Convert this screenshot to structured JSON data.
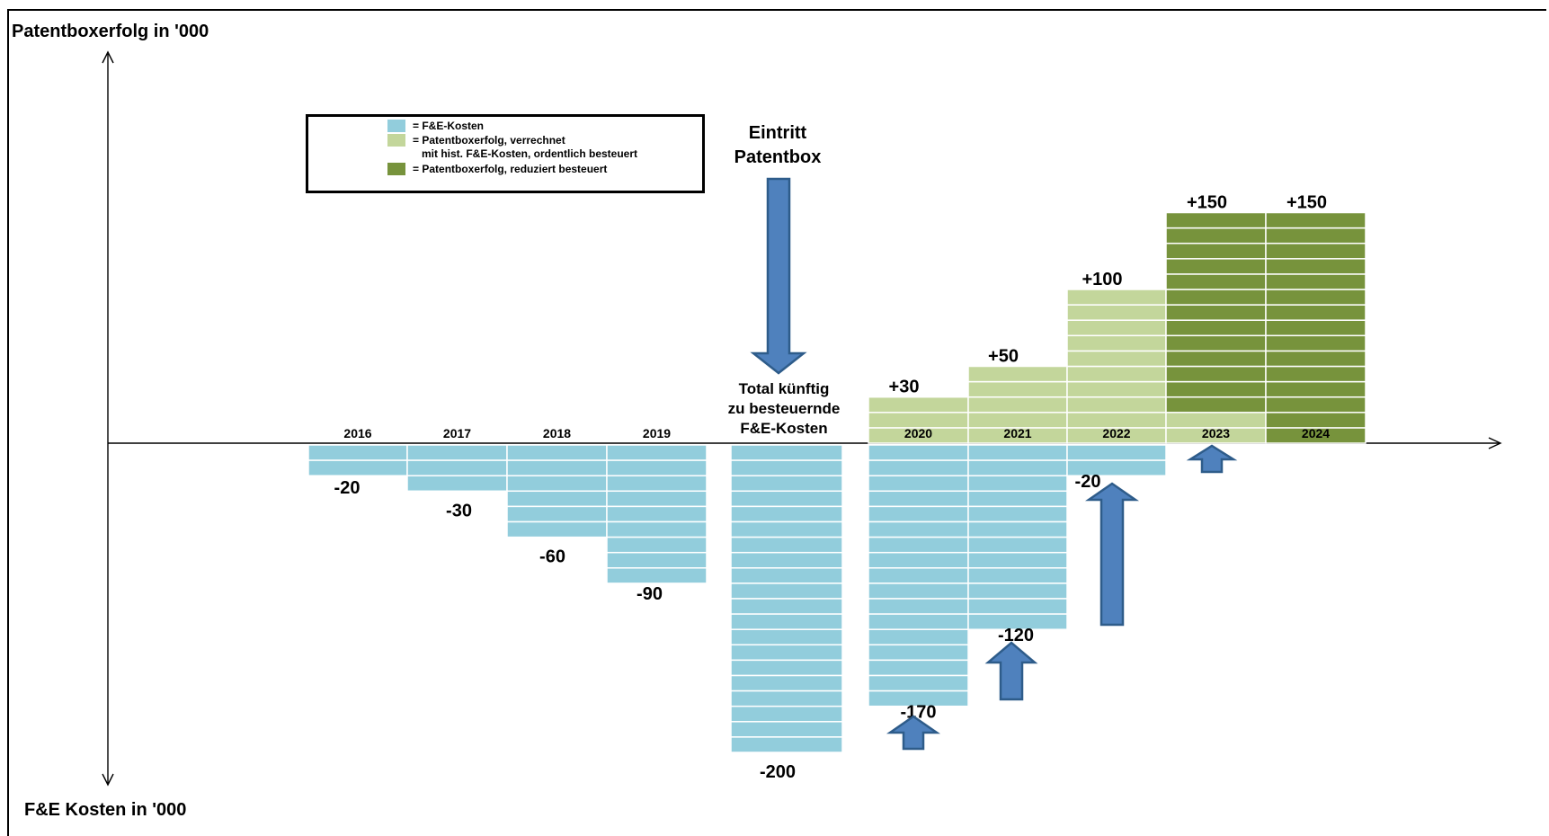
{
  "colors": {
    "fe_kosten": "#92cddc",
    "verrechnet": "#c3d69b",
    "reduziert": "#77933c",
    "arrow": "#4f81bd",
    "arrow_stroke": "#2e5c8a"
  },
  "y_title_top": "Patentboxerfolg in '000",
  "y_title_bottom": "F&E Kosten in '000",
  "legend": {
    "items": [
      {
        "color_key": "fe_kosten",
        "text": "= F&E-Kosten"
      },
      {
        "color_key": "verrechnet",
        "text": "= Patentboxerfolg, verrechnet\n   mit hist. F&E-Kosten, ordentlich besteuert"
      },
      {
        "color_key": "reduziert",
        "text": "= Patentboxerfolg, reduziert besteuert"
      }
    ]
  },
  "annotations": {
    "eintritt": "Eintritt\nPatentbox",
    "total": "Total künftig\nzu besteuernde\nF&E-Kosten"
  },
  "chart_data": {
    "type": "bar",
    "unit_per_segment": 10,
    "categories": [
      "2016",
      "2017",
      "2018",
      "2019",
      "Total",
      "2020",
      "2021",
      "2022",
      "2023",
      "2024"
    ],
    "category_labels": [
      "2016",
      "2017",
      "2018",
      "2019",
      "",
      "2020",
      "2021",
      "2022",
      "2023",
      "2024"
    ],
    "series": [
      {
        "name": "= F&E-Kosten",
        "color_key": "fe_kosten",
        "values": [
          -20,
          -30,
          -60,
          -90,
          -200,
          -170,
          -120,
          -20,
          0,
          0
        ]
      },
      {
        "name": "= Patentboxerfolg, verrechnet mit hist. F&E-Kosten, ordentlich besteuert",
        "color_key": "verrechnet",
        "values": [
          0,
          0,
          0,
          0,
          0,
          30,
          50,
          100,
          20,
          0
        ]
      },
      {
        "name": "= Patentboxerfolg, reduziert besteuert",
        "color_key": "reduziert",
        "values": [
          0,
          0,
          0,
          0,
          0,
          0,
          0,
          0,
          130,
          150
        ]
      }
    ],
    "value_labels": [
      {
        "category": "2016",
        "text": "-20"
      },
      {
        "category": "2017",
        "text": "-30"
      },
      {
        "category": "2018",
        "text": "-60"
      },
      {
        "category": "2019",
        "text": "-90"
      },
      {
        "category": "Total",
        "text": "-200"
      },
      {
        "category": "2020",
        "text": "-170"
      },
      {
        "category": "2021",
        "text": "-120"
      },
      {
        "category": "2022",
        "text": "-20"
      },
      {
        "category": "2020",
        "text": "+30"
      },
      {
        "category": "2021",
        "text": "+50"
      },
      {
        "category": "2022",
        "text": "+100"
      },
      {
        "category": "2023",
        "text": "+150"
      },
      {
        "category": "2024",
        "text": "+150"
      }
    ],
    "arrows": [
      {
        "direction": "down",
        "category": "Total"
      },
      {
        "direction": "up",
        "category": "2020",
        "from": -200,
        "to": -170
      },
      {
        "direction": "up",
        "category": "2021",
        "from": -170,
        "to": -120
      },
      {
        "direction": "up",
        "category": "2022",
        "from": -120,
        "to": -20
      },
      {
        "direction": "up",
        "category": "2023",
        "from": -20,
        "to": 0
      }
    ],
    "ylim": [
      -220,
      260
    ],
    "grid": false,
    "legend_position": "top-left"
  }
}
